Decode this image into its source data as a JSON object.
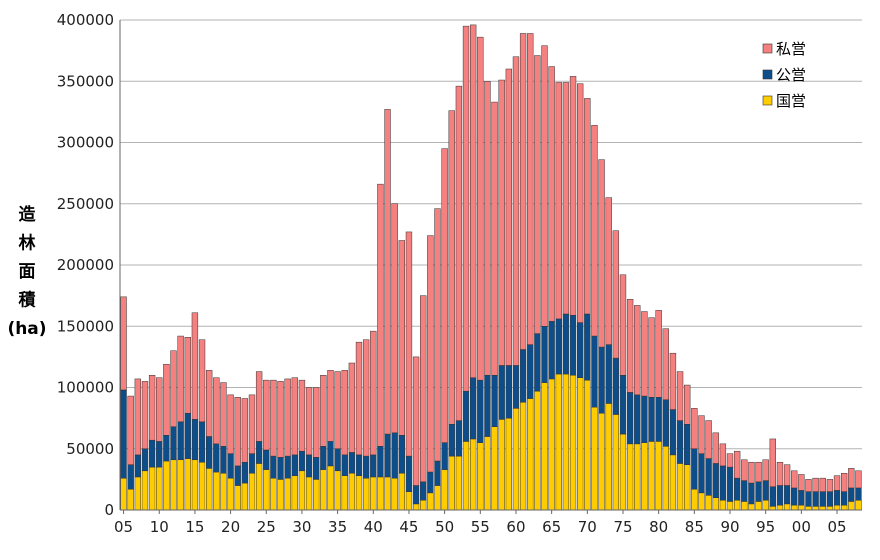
{
  "chart_data": {
    "type": "bar",
    "stacked": true,
    "title": "",
    "xlabel": "",
    "ylabel": "造林面積(ha)",
    "ylabel_lines": [
      "造",
      "林",
      "面",
      "積",
      "(ha)"
    ],
    "ylim": [
      0,
      400000
    ],
    "yticks": [
      "0",
      "50000",
      "100000",
      "150000",
      "200000",
      "250000",
      "300000",
      "350000",
      "400000"
    ],
    "grid": true,
    "legend_position": "top-right",
    "xtick_labels": [
      "05",
      "10",
      "15",
      "20",
      "25",
      "30",
      "35",
      "40",
      "45",
      "50",
      "55",
      "60",
      "65",
      "70",
      "75",
      "80",
      "85",
      "90",
      "95",
      "00",
      "05"
    ],
    "x": [
      1905,
      1906,
      1907,
      1908,
      1909,
      1910,
      1911,
      1912,
      1913,
      1914,
      1915,
      1916,
      1917,
      1918,
      1919,
      1920,
      1921,
      1922,
      1923,
      1924,
      1925,
      1926,
      1927,
      1928,
      1929,
      1930,
      1931,
      1932,
      1933,
      1934,
      1935,
      1936,
      1937,
      1938,
      1939,
      1940,
      1941,
      1942,
      1943,
      1944,
      1945,
      1946,
      1947,
      1948,
      1949,
      1950,
      1951,
      1952,
      1953,
      1954,
      1955,
      1956,
      1957,
      1958,
      1959,
      1960,
      1961,
      1962,
      1963,
      1964,
      1965,
      1966,
      1967,
      1968,
      1969,
      1970,
      1971,
      1972,
      1973,
      1974,
      1975,
      1976,
      1977,
      1978,
      1979,
      1980,
      1981,
      1982,
      1983,
      1984,
      1985,
      1986,
      1987,
      1988,
      1989,
      1990,
      1991,
      1992,
      1993,
      1994,
      1995,
      1996,
      1997,
      1998,
      1999,
      2000,
      2001,
      2002,
      2003,
      2004,
      2005,
      2006,
      2007,
      2008
    ],
    "series": [
      {
        "name": "国営",
        "color": "#ffcc00",
        "values": [
          26000,
          17000,
          27000,
          32000,
          35000,
          35000,
          40000,
          41000,
          41000,
          42000,
          41000,
          39000,
          34000,
          31000,
          30000,
          26000,
          20000,
          22000,
          30000,
          38000,
          33000,
          26000,
          25000,
          26000,
          28000,
          32000,
          27000,
          25000,
          33000,
          36000,
          32000,
          28000,
          30000,
          28000,
          26000,
          27000,
          27000,
          27000,
          26000,
          30000,
          15000,
          5000,
          8000,
          14000,
          20000,
          33000,
          44000,
          44000,
          56000,
          58000,
          55000,
          60000,
          68000,
          74000,
          75000,
          83000,
          88000,
          91000,
          97000,
          104000,
          107000,
          111000,
          111000,
          110000,
          108000,
          106000,
          84000,
          79000,
          87000,
          78000,
          62000,
          54000,
          54000,
          55000,
          56000,
          56000,
          52000,
          45000,
          38000,
          37000,
          17000,
          14000,
          12000,
          10000,
          8000,
          7000,
          8000,
          7000,
          5000,
          7000,
          8000,
          3000,
          4000,
          5000,
          4000,
          4000,
          3000,
          3000,
          3000,
          3000,
          4000,
          4000,
          7000,
          8000
        ]
      },
      {
        "name": "公営",
        "color": "#0d4e8a",
        "values": [
          72000,
          20000,
          18000,
          18000,
          22000,
          21000,
          21000,
          27000,
          31000,
          37000,
          33000,
          33000,
          26000,
          23000,
          22000,
          20000,
          16000,
          17000,
          16000,
          18000,
          16000,
          18000,
          18000,
          18000,
          17000,
          16000,
          18000,
          18000,
          19000,
          20000,
          18000,
          17000,
          17000,
          17000,
          18000,
          18000,
          25000,
          35000,
          37000,
          31000,
          29000,
          15000,
          15000,
          17000,
          20000,
          22000,
          26000,
          29000,
          41000,
          50000,
          51000,
          50000,
          42000,
          44000,
          43000,
          35000,
          43000,
          44000,
          47000,
          46000,
          47000,
          45000,
          49000,
          49000,
          45000,
          54000,
          58000,
          54000,
          48000,
          46000,
          48000,
          42000,
          40000,
          38000,
          36000,
          36000,
          38000,
          37000,
          35000,
          33000,
          33000,
          32000,
          30000,
          28000,
          28000,
          28000,
          18000,
          17000,
          17000,
          16000,
          16000,
          16000,
          16000,
          15000,
          14000,
          12000,
          12000,
          12000,
          12000,
          12000,
          12000,
          11000,
          11000,
          10000
        ]
      },
      {
        "name": "私営",
        "color": "#f58080",
        "values": [
          76000,
          56000,
          62000,
          55000,
          53000,
          52000,
          58000,
          62000,
          70000,
          62000,
          87000,
          67000,
          54000,
          54000,
          52000,
          48000,
          56000,
          52000,
          48000,
          57000,
          57000,
          62000,
          62000,
          63000,
          63000,
          58000,
          55000,
          57000,
          58000,
          58000,
          63000,
          69000,
          73000,
          92000,
          95000,
          101000,
          214000,
          265000,
          187000,
          159000,
          183000,
          105000,
          152000,
          193000,
          206000,
          240000,
          256000,
          273000,
          298000,
          288000,
          280000,
          240000,
          223000,
          233000,
          242000,
          252000,
          258000,
          254000,
          227000,
          229000,
          208000,
          193000,
          189000,
          195000,
          195000,
          176000,
          172000,
          153000,
          120000,
          104000,
          82000,
          76000,
          73000,
          69000,
          65000,
          71000,
          58000,
          46000,
          40000,
          32000,
          33000,
          31000,
          31000,
          25000,
          18000,
          11000,
          22000,
          17000,
          17000,
          16000,
          17000,
          39000,
          19000,
          17000,
          14000,
          13000,
          10000,
          11000,
          11000,
          10000,
          12000,
          15000,
          16000,
          14000
        ]
      }
    ]
  }
}
